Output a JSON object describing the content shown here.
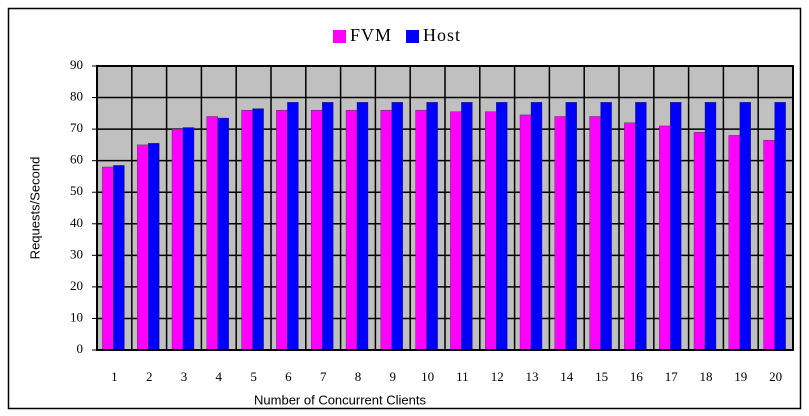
{
  "chart_data": {
    "type": "bar",
    "categories": [
      "1",
      "2",
      "3",
      "4",
      "5",
      "6",
      "7",
      "8",
      "9",
      "10",
      "11",
      "12",
      "13",
      "14",
      "15",
      "16",
      "17",
      "18",
      "19",
      "20"
    ],
    "series": [
      {
        "name": "FVM",
        "color": "#ff00ff",
        "values": [
          58,
          65,
          70,
          74,
          76,
          76,
          76,
          76,
          76,
          76,
          75.5,
          75.5,
          74.5,
          74,
          74,
          72,
          71,
          69,
          68,
          66.5
        ]
      },
      {
        "name": "Host",
        "color": "#0000ff",
        "values": [
          58.5,
          65.5,
          70.5,
          73.5,
          76.5,
          78.5,
          78.5,
          78.5,
          78.5,
          78.5,
          78.5,
          78.5,
          78.5,
          78.5,
          78.5,
          78.5,
          78.5,
          78.5,
          78.5,
          78.5
        ]
      }
    ],
    "x_label": "Number of Concurrent Clients",
    "y_label": "Requests/Second",
    "ylim": [
      0,
      90
    ],
    "yticks": [
      0,
      10,
      20,
      30,
      40,
      50,
      60,
      70,
      80,
      90
    ],
    "grid": true
  }
}
